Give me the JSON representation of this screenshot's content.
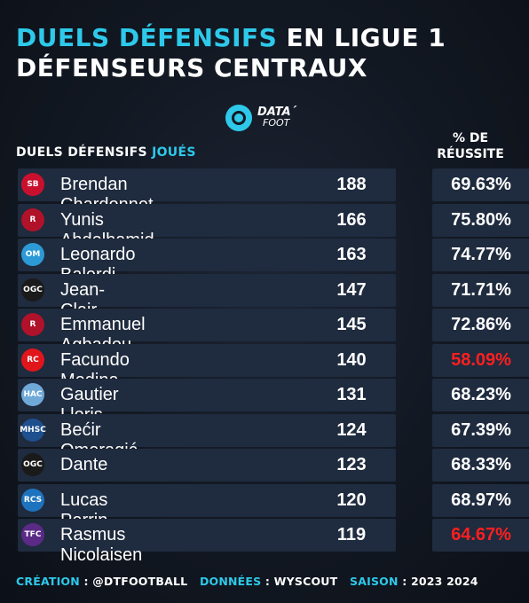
{
  "title": {
    "line1_accent": "DUELS DÉFENSIFS",
    "line1_rest": " EN LIGUE 1",
    "line2": "DÉFENSEURS CENTRAUX"
  },
  "logo": {
    "line1": "DATA´",
    "line2": "FOOT"
  },
  "headers": {
    "left_plain": "DUELS DÉFENSIFS ",
    "left_accent": "JOUÉS",
    "right_line1": "% DE",
    "right_line2": "RÉUSSITE"
  },
  "rows": [
    {
      "club": "SB",
      "club_color": "#c8102e",
      "name": "Brendan Chardonnet",
      "duels": "188",
      "pct": "69.63%",
      "low": false
    },
    {
      "club": "R",
      "club_color": "#b0122a",
      "name": "Yunis Abdelhamid",
      "duels": "166",
      "pct": "75.80%",
      "low": false
    },
    {
      "club": "OM",
      "club_color": "#2c9ad6",
      "name": "Leonardo Balerdi",
      "duels": "163",
      "pct": "74.77%",
      "low": false
    },
    {
      "club": "OGC",
      "club_color": "#1a1a1a",
      "name": "Jean-Clair Todibo",
      "duels": "147",
      "pct": "71.71%",
      "low": false
    },
    {
      "club": "R",
      "club_color": "#b0122a",
      "name": "Emmanuel Agbadou",
      "duels": "145",
      "pct": "72.86%",
      "low": false
    },
    {
      "club": "RC",
      "club_color": "#e0161b",
      "name": "Facundo Medina",
      "duels": "140",
      "pct": "58.09%",
      "low": true
    },
    {
      "club": "HAC",
      "club_color": "#6fa9d8",
      "name": "Gautier Lloris",
      "duels": "131",
      "pct": "68.23%",
      "low": false
    },
    {
      "club": "MHSC",
      "club_color": "#1e4f8f",
      "name": "Bećir Omeragić",
      "duels": "124",
      "pct": "67.39%",
      "low": false
    },
    {
      "club": "OGC",
      "club_color": "#1a1a1a",
      "name": "Dante",
      "duels": "123",
      "pct": "68.33%",
      "low": false
    },
    {
      "club": "RCS",
      "club_color": "#1e73be",
      "name": "Lucas Perrin",
      "duels": "120",
      "pct": "68.97%",
      "low": false
    },
    {
      "club": "TFC",
      "club_color": "#5b2a86",
      "name": "Rasmus Nicolaisen",
      "duels": "119",
      "pct": "64.67%",
      "low": true
    }
  ],
  "footer": {
    "creation_label": "CRÉATION",
    "creation_value": " : @DTFOOTBALL",
    "data_label": "DONNÉES",
    "data_value": " : WYSCOUT",
    "season_label": "SAISON",
    "season_value": " : 2023 2024"
  },
  "colors": {
    "accent": "#2ec9ea",
    "low": "#ff1f1f",
    "card": "#1f2b3e"
  }
}
